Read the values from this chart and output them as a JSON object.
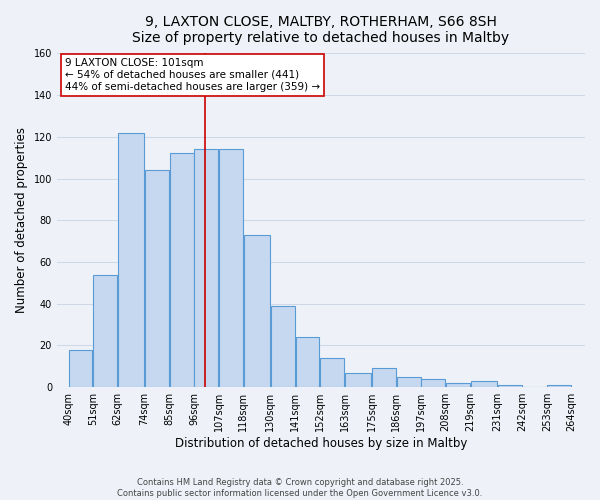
{
  "title_line1": "9, LAXTON CLOSE, MALTBY, ROTHERHAM, S66 8SH",
  "title_line2": "Size of property relative to detached houses in Maltby",
  "xlabel": "Distribution of detached houses by size in Maltby",
  "ylabel": "Number of detached properties",
  "bar_left_edges": [
    40,
    51,
    62,
    74,
    85,
    96,
    107,
    118,
    130,
    141,
    152,
    163,
    175,
    186,
    197,
    208,
    219,
    231,
    242,
    253
  ],
  "bar_widths": [
    11,
    11,
    12,
    11,
    11,
    11,
    11,
    12,
    11,
    11,
    11,
    12,
    11,
    11,
    11,
    11,
    12,
    11,
    11,
    11
  ],
  "bar_heights": [
    18,
    54,
    122,
    104,
    112,
    114,
    114,
    73,
    39,
    24,
    14,
    7,
    9,
    5,
    4,
    2,
    3,
    1,
    0,
    1
  ],
  "bar_facecolor": "#c5d8f0",
  "bar_edgecolor": "#5b9bd5",
  "bar_linewidth": 0.8,
  "xticklabels": [
    "40sqm",
    "51sqm",
    "62sqm",
    "74sqm",
    "85sqm",
    "96sqm",
    "107sqm",
    "118sqm",
    "130sqm",
    "141sqm",
    "152sqm",
    "163sqm",
    "175sqm",
    "186sqm",
    "197sqm",
    "208sqm",
    "219sqm",
    "231sqm",
    "242sqm",
    "253sqm",
    "264sqm"
  ],
  "xtick_positions": [
    40,
    51,
    62,
    74,
    85,
    96,
    107,
    118,
    130,
    141,
    152,
    163,
    175,
    186,
    197,
    208,
    219,
    231,
    242,
    253,
    264
  ],
  "ylim": [
    0,
    160
  ],
  "yticks": [
    0,
    20,
    40,
    60,
    80,
    100,
    120,
    140,
    160
  ],
  "xlim": [
    35,
    270
  ],
  "vline_x": 101,
  "vline_color": "#cc0000",
  "vline_linewidth": 1.2,
  "annotation_title": "9 LAXTON CLOSE: 101sqm",
  "annotation_line1": "← 54% of detached houses are smaller (441)",
  "annotation_line2": "44% of semi-detached houses are larger (359) →",
  "annotation_box_edgecolor": "#cc0000",
  "annotation_box_facecolor": "#ffffff",
  "grid_color": "#d0d8e8",
  "background_color": "#eef2f8",
  "footer_line1": "Contains HM Land Registry data © Crown copyright and database right 2025.",
  "footer_line2": "Contains public sector information licensed under the Open Government Licence v3.0.",
  "title_fontsize": 10,
  "axis_label_fontsize": 8.5,
  "tick_fontsize": 7,
  "annotation_fontsize": 7.5,
  "footer_fontsize": 6
}
